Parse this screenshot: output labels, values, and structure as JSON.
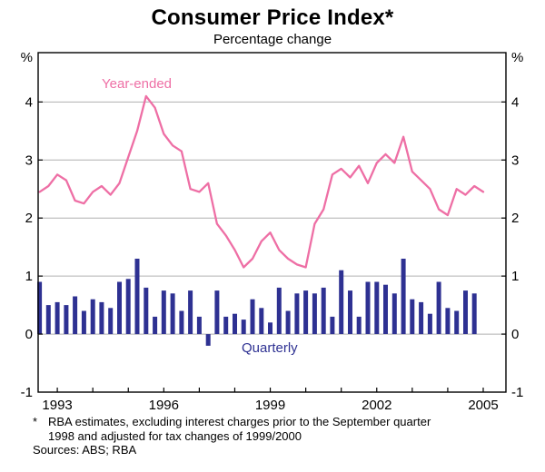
{
  "chart_data": {
    "type": "combo",
    "title": "Consumer Price Index*",
    "subtitle": "Percentage change",
    "y_unit": "%",
    "ylim": [
      -1,
      4.85
    ],
    "y_ticks": [
      -1,
      0,
      1,
      2,
      3,
      4
    ],
    "xlim": [
      1992.46,
      2005.64
    ],
    "x_tick_start": 1993,
    "x_tick_end": 2005,
    "x_labels": [
      1993,
      1996,
      1999,
      2002,
      2005
    ],
    "x_start": 1992.5,
    "x_step": 0.25,
    "grid": true,
    "gridline_color": "#b0b0b0",
    "frame_color": "#000000",
    "series": [
      {
        "name": "Year-ended",
        "type": "line",
        "color": "#ee6fa5",
        "values": [
          2.45,
          2.55,
          2.75,
          2.65,
          2.3,
          2.25,
          2.45,
          2.55,
          2.4,
          2.6,
          3.05,
          3.5,
          4.1,
          3.9,
          3.45,
          3.25,
          3.15,
          2.5,
          2.45,
          2.6,
          1.9,
          1.7,
          1.45,
          1.15,
          1.3,
          1.6,
          1.75,
          1.45,
          1.3,
          1.2,
          1.15,
          1.9,
          2.15,
          2.75,
          2.85,
          2.7,
          2.9,
          2.6,
          2.95,
          3.1,
          2.95,
          3.4,
          2.8,
          2.65,
          2.5,
          2.15,
          2.05,
          2.5,
          2.4,
          2.55,
          2.45
        ]
      },
      {
        "name": "Quarterly",
        "type": "bar",
        "color": "#2e3192",
        "values": [
          0.9,
          0.5,
          0.55,
          0.5,
          0.65,
          0.4,
          0.6,
          0.55,
          0.45,
          0.9,
          0.95,
          1.3,
          0.8,
          0.3,
          0.75,
          0.7,
          0.4,
          0.75,
          0.3,
          -0.2,
          0.75,
          0.3,
          0.35,
          0.25,
          0.6,
          0.45,
          0.2,
          0.8,
          0.4,
          0.7,
          0.75,
          0.7,
          0.8,
          0.3,
          1.1,
          0.75,
          0.3,
          0.9,
          0.9,
          0.85,
          0.7,
          1.3,
          0.6,
          0.55,
          0.35,
          0.9,
          0.45,
          0.4,
          0.75,
          0.7,
          null
        ]
      }
    ]
  },
  "footnote": {
    "marker": "*",
    "line1": "RBA estimates, excluding interest charges prior to the September quarter",
    "line2": "1998 and adjusted for tax changes of 1999/2000",
    "sources": "Sources: ABS; RBA"
  }
}
